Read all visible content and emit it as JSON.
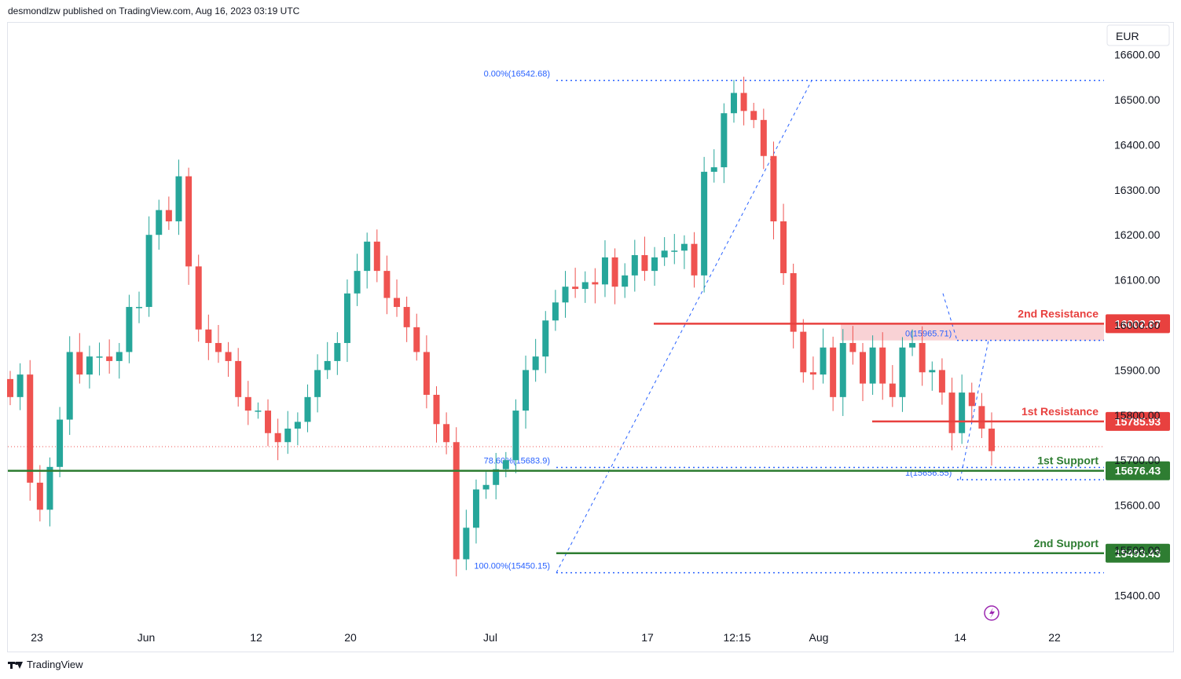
{
  "header": {
    "publisher_text": "desmondlzw published on TradingView.com, Aug 16, 2023 03:19 UTC"
  },
  "footer": {
    "brand": "TradingView",
    "logo_icon": "tradingview-logo-icon"
  },
  "currency": "EUR",
  "colors": {
    "up": "#26a69a",
    "down": "#ef5350",
    "resistance": "#e8413f",
    "support": "#2e7d32",
    "fib": "#2962ff",
    "zone": "#f8cdd0"
  },
  "chart_data": {
    "type": "candlestick",
    "title": "",
    "y_axis": {
      "ticks": [
        16600,
        16500,
        16400,
        16300,
        16200,
        16100,
        16000,
        15900,
        15800,
        15700,
        15600,
        15500,
        15400
      ],
      "tick_labels": [
        "16600.00",
        "16500.00",
        "16400.00",
        "16300.00",
        "16200.00",
        "16100.00",
        "16000.00",
        "15900.00",
        "15800.00",
        "15700.00",
        "15600.00",
        "15500.00",
        "15400.00"
      ],
      "ylim": [
        15360,
        16650
      ]
    },
    "x_axis": {
      "labels": [
        "23",
        "Jun",
        "12",
        "20",
        "Jul",
        "17",
        "12:15",
        "Aug",
        "14",
        "22"
      ]
    },
    "levels": [
      {
        "name": "2nd Resistance",
        "value": 16002.87,
        "badge": "16002.87",
        "kind": "resistance"
      },
      {
        "name": "1st Resistance",
        "value": 15785.93,
        "badge": "15785.93",
        "kind": "resistance"
      },
      {
        "name": "1st Support",
        "value": 15676.43,
        "badge": "15676.43",
        "kind": "support"
      },
      {
        "name": "2nd Support",
        "value": 15493.43,
        "badge": "15493.43",
        "kind": "support"
      }
    ],
    "fib_labels": [
      {
        "text": "0.00%(16542.68)",
        "value": 16542.68
      },
      {
        "text": "78.60%(15683.9)",
        "value": 15683.9
      },
      {
        "text": "100.00%(15450.15)",
        "value": 15450.15
      },
      {
        "text": "0(15965.71)",
        "value": 15965.71
      },
      {
        "text": "1(15656.55)",
        "value": 15656.55
      }
    ],
    "closes": [
      15840,
      15890,
      15650,
      15590,
      15685,
      15790,
      15940,
      15890,
      15930,
      15930,
      15920,
      15940,
      16040,
      16040,
      16200,
      16255,
      16230,
      16330,
      16130,
      15990,
      15960,
      15940,
      15920,
      15840,
      15810,
      15810,
      15760,
      15740,
      15770,
      15785,
      15840,
      15900,
      15920,
      15960,
      16070,
      16120,
      16185,
      16120,
      16060,
      16040,
      15995,
      15940,
      15845,
      15780,
      15740,
      15480,
      15550,
      15635,
      15645,
      15680,
      15700,
      15810,
      15900,
      15930,
      16010,
      16050,
      16085,
      16080,
      16095,
      16090,
      16150,
      16085,
      16110,
      16155,
      16120,
      16150,
      16165,
      16165,
      16180,
      16110,
      16340,
      16350,
      16470,
      16515,
      16475,
      16455,
      16375,
      16230,
      16115,
      15985,
      15895,
      15890,
      15950,
      15840,
      15960,
      15940,
      15870,
      15950,
      15870,
      15840,
      15950,
      15960,
      15895,
      15900,
      15850,
      15760,
      15850,
      15820,
      15770,
      15720
    ]
  }
}
